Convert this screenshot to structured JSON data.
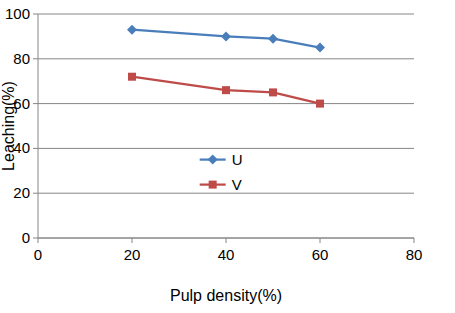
{
  "chart_data": {
    "type": "line",
    "x_label": "Pulp density(%)",
    "y_label": "Leaching(%)",
    "x": [
      20,
      40,
      50,
      60
    ],
    "series": [
      {
        "name": "U",
        "color": "#4a7ebb",
        "marker": "diamond",
        "values": [
          93,
          90,
          89,
          85
        ]
      },
      {
        "name": "V",
        "color": "#be4b48",
        "marker": "square",
        "values": [
          72,
          66,
          65,
          60
        ]
      }
    ],
    "xlim": [
      0,
      80
    ],
    "xticks": [
      0,
      20,
      40,
      60,
      80
    ],
    "ylim": [
      0,
      100
    ],
    "yticks": [
      0,
      20,
      40,
      60,
      80,
      100
    ],
    "grid": true,
    "legend": "center"
  }
}
